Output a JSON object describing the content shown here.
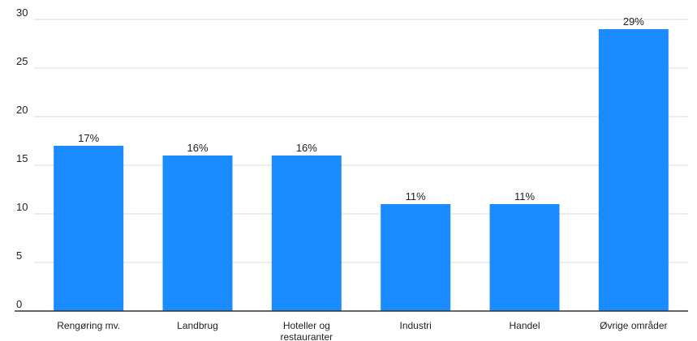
{
  "chart_data": {
    "type": "bar",
    "categories": [
      [
        "Rengøring mv."
      ],
      [
        "Landbrug"
      ],
      [
        "Hoteller og",
        "restauranter"
      ],
      [
        "Industri"
      ],
      [
        "Handel"
      ],
      [
        "Øvrige områder"
      ]
    ],
    "values": [
      17,
      16,
      16,
      11,
      11,
      29
    ],
    "data_labels": [
      "17%",
      "16%",
      "16%",
      "11%",
      "11%",
      "29%"
    ],
    "yticks": [
      0,
      5,
      10,
      15,
      20,
      25,
      30
    ],
    "ytick_labels": [
      "0",
      "5",
      "10",
      "15",
      "20",
      "25",
      "30"
    ],
    "ylim": [
      0,
      30
    ],
    "grid": true,
    "bar_color": "#1a8cff"
  }
}
